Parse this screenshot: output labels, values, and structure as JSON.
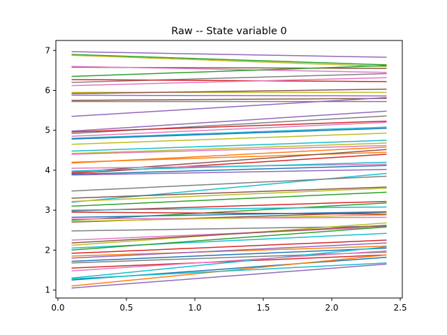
{
  "chart_data": {
    "type": "line",
    "title": "Raw -- State variable 0",
    "xlabel": "",
    "ylabel": "",
    "xlim": [
      -0.015,
      2.515
    ],
    "ylim": [
      0.8,
      7.25
    ],
    "x_ticks": [
      0.0,
      0.5,
      1.0,
      1.5,
      2.0,
      2.5
    ],
    "x_tick_labels": [
      "0.0",
      "0.5",
      "1.0",
      "1.5",
      "2.0",
      "2.5"
    ],
    "y_ticks": [
      1,
      2,
      3,
      4,
      5,
      6,
      7
    ],
    "y_tick_labels": [
      "1",
      "2",
      "3",
      "4",
      "5",
      "6",
      "7"
    ],
    "grid": false,
    "legend": "none",
    "x_range": [
      0.1,
      2.4
    ],
    "line_width": 1.5,
    "series": [
      {
        "color": "#9467bd",
        "start": 6.97,
        "end": 6.83
      },
      {
        "color": "#2ca02c",
        "start": 6.9,
        "end": 6.64
      },
      {
        "color": "#bcbd22",
        "start": 6.88,
        "end": 6.6
      },
      {
        "color": "#8c564b",
        "start": 6.58,
        "end": 6.55
      },
      {
        "color": "#e377c2",
        "start": 6.6,
        "end": 6.45
      },
      {
        "color": "#2ca02c",
        "start": 6.35,
        "end": 6.62
      },
      {
        "color": "#7f7f7f",
        "start": 6.2,
        "end": 6.42
      },
      {
        "color": "#d62728",
        "start": 6.27,
        "end": 6.22
      },
      {
        "color": "#e377c2",
        "start": 6.12,
        "end": 6.32
      },
      {
        "color": "#bcbd22",
        "start": 5.95,
        "end": 5.95
      },
      {
        "color": "#8c564b",
        "start": 5.92,
        "end": 6.03
      },
      {
        "color": "#9467bd",
        "start": 5.88,
        "end": 5.86
      },
      {
        "color": "#7f7f7f",
        "start": 5.72,
        "end": 5.72
      },
      {
        "color": "#8c564b",
        "start": 5.75,
        "end": 5.8
      },
      {
        "color": "#9467bd",
        "start": 5.35,
        "end": 5.82
      },
      {
        "color": "#9467bd",
        "start": 4.98,
        "end": 5.48
      },
      {
        "color": "#7f7f7f",
        "start": 4.92,
        "end": 5.36
      },
      {
        "color": "#d62728",
        "start": 4.96,
        "end": 5.23
      },
      {
        "color": "#e377c2",
        "start": 4.85,
        "end": 5.2
      },
      {
        "color": "#17becf",
        "start": 4.8,
        "end": 5.08
      },
      {
        "color": "#1f77b4",
        "start": 4.78,
        "end": 5.05
      },
      {
        "color": "#bcbd22",
        "start": 4.65,
        "end": 4.93
      },
      {
        "color": "#17becf",
        "start": 4.48,
        "end": 4.75
      },
      {
        "color": "#bcbd22",
        "start": 4.42,
        "end": 4.68
      },
      {
        "color": "#e377c2",
        "start": 4.4,
        "end": 4.62
      },
      {
        "color": "#ff7f0e",
        "start": 4.2,
        "end": 4.45
      },
      {
        "color": "#ff7f0e",
        "start": 4.18,
        "end": 4.58
      },
      {
        "color": "#8c564b",
        "start": 3.95,
        "end": 4.52
      },
      {
        "color": "#d62728",
        "start": 3.92,
        "end": 4.4
      },
      {
        "color": "#e377c2",
        "start": 4.05,
        "end": 4.15
      },
      {
        "color": "#17becf",
        "start": 3.98,
        "end": 4.2
      },
      {
        "color": "#1f77b4",
        "start": 3.9,
        "end": 4.12
      },
      {
        "color": "#9467bd",
        "start": 3.88,
        "end": 4.02
      },
      {
        "color": "#17becf",
        "start": 3.2,
        "end": 3.92
      },
      {
        "color": "#7f7f7f",
        "start": 3.48,
        "end": 3.85
      },
      {
        "color": "#8c564b",
        "start": 3.3,
        "end": 3.58
      },
      {
        "color": "#bcbd22",
        "start": 3.22,
        "end": 3.55
      },
      {
        "color": "#2ca02c",
        "start": 3.1,
        "end": 3.45
      },
      {
        "color": "#d62728",
        "start": 2.98,
        "end": 3.22
      },
      {
        "color": "#2ca02c",
        "start": 2.75,
        "end": 3.18
      },
      {
        "color": "#17becf",
        "start": 3.0,
        "end": 3.08
      },
      {
        "color": "#8c564b",
        "start": 2.7,
        "end": 2.95
      },
      {
        "color": "#d62728",
        "start": 2.95,
        "end": 2.9
      },
      {
        "color": "#1f77b4",
        "start": 2.82,
        "end": 2.96
      },
      {
        "color": "#e377c2",
        "start": 2.78,
        "end": 2.82
      },
      {
        "color": "#bcbd22",
        "start": 2.72,
        "end": 2.88
      },
      {
        "color": "#7f7f7f",
        "start": 2.48,
        "end": 2.6
      },
      {
        "color": "#bcbd22",
        "start": 2.12,
        "end": 2.68
      },
      {
        "color": "#e377c2",
        "start": 2.25,
        "end": 2.58
      },
      {
        "color": "#8c564b",
        "start": 2.18,
        "end": 2.62
      },
      {
        "color": "#17becf",
        "start": 2.05,
        "end": 2.42
      },
      {
        "color": "#2ca02c",
        "start": 2.0,
        "end": 2.58
      },
      {
        "color": "#d62728",
        "start": 1.92,
        "end": 2.25
      },
      {
        "color": "#ff7f0e",
        "start": 1.85,
        "end": 2.1
      },
      {
        "color": "#9467bd",
        "start": 1.8,
        "end": 2.18
      },
      {
        "color": "#1f77b4",
        "start": 1.72,
        "end": 2.05
      },
      {
        "color": "#7f7f7f",
        "start": 1.68,
        "end": 1.95
      },
      {
        "color": "#d62728",
        "start": 1.55,
        "end": 1.88
      },
      {
        "color": "#17becf",
        "start": 1.3,
        "end": 2.08
      },
      {
        "color": "#1f77b4",
        "start": 1.25,
        "end": 1.82
      },
      {
        "color": "#e377c2",
        "start": 1.48,
        "end": 1.98
      },
      {
        "color": "#ff7f0e",
        "start": 1.1,
        "end": 1.88
      },
      {
        "color": "#17becf",
        "start": 1.28,
        "end": 1.68
      },
      {
        "color": "#9467bd",
        "start": 1.05,
        "end": 1.65
      }
    ]
  }
}
